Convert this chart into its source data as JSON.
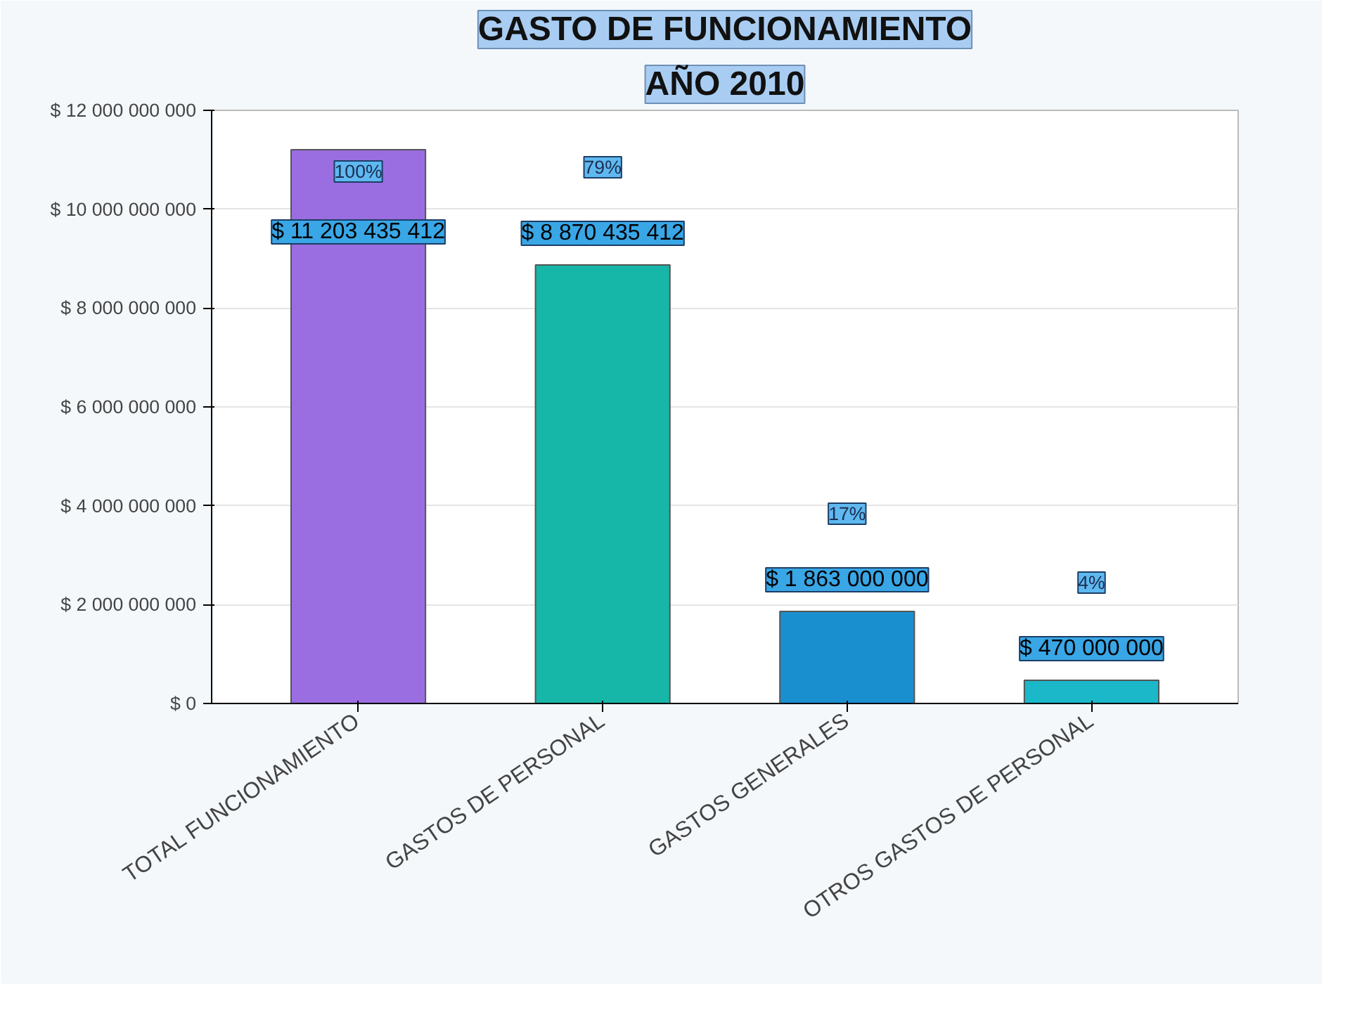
{
  "chart_data": {
    "type": "bar",
    "title": "GASTO DE FUNCIONAMIENTO",
    "subtitle": "AÑO 2010",
    "categories": [
      "TOTAL FUNCIONAMIENTO",
      "GASTOS DE PERSONAL",
      "GASTOS GENERALES",
      "OTROS GASTOS DE PERSONAL"
    ],
    "values": [
      11203435412,
      8870435412,
      1863000000,
      470000000
    ],
    "colors": [
      "#9a6ee0",
      "#16b6a8",
      "#1a8fd0",
      "#1ab8c8"
    ],
    "value_labels": [
      "$ 11 203 435 412",
      "$ 8 870 435 412",
      "$ 1 863 000 000",
      "$ 470 000 000"
    ],
    "annotations": [
      "100%",
      "79%",
      "17%",
      "4%"
    ],
    "ylim": [
      0,
      12000000000
    ],
    "yticks": [
      {
        "value": 0,
        "label": "$ 0"
      },
      {
        "value": 2000000000,
        "label": "$ 2 000 000 000"
      },
      {
        "value": 4000000000,
        "label": "$ 4 000 000 000"
      },
      {
        "value": 6000000000,
        "label": "$ 6 000 000 000"
      },
      {
        "value": 8000000000,
        "label": "$ 8 000 000 000"
      },
      {
        "value": 10000000000,
        "label": "$ 10 000 000 000"
      },
      {
        "value": 12000000000,
        "label": "$ 12 000 000 000"
      }
    ],
    "grid": "y"
  }
}
